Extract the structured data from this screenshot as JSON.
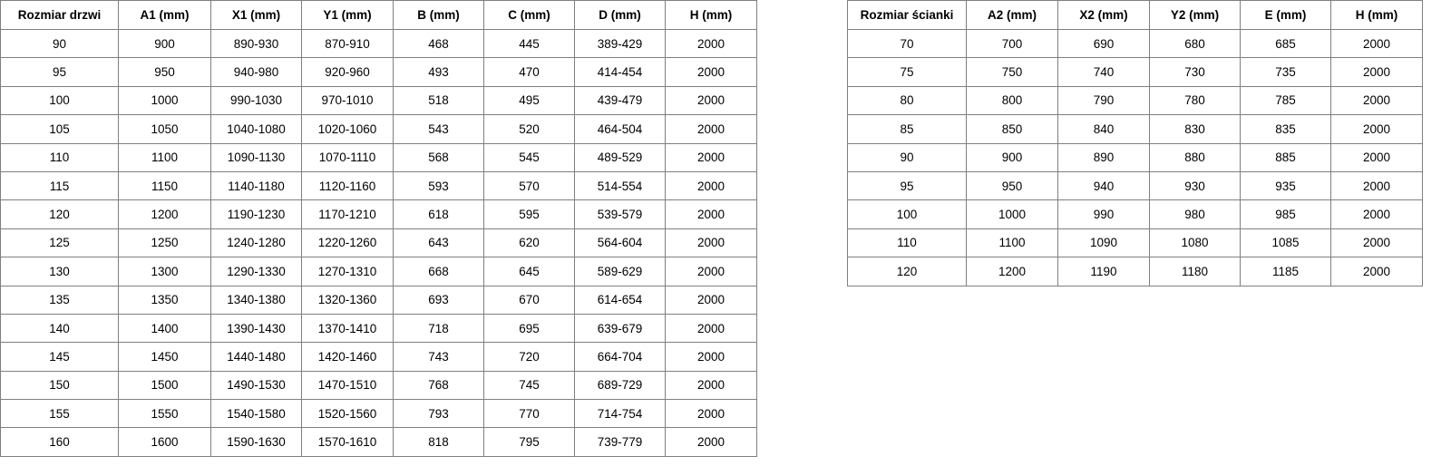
{
  "door_table": {
    "headers": [
      "Rozmiar drzwi",
      "A1 (mm)",
      "X1 (mm)",
      "Y1 (mm)",
      "B (mm)",
      "C (mm)",
      "D (mm)",
      "H (mm)"
    ],
    "rows": [
      [
        "90",
        "900",
        "890-930",
        "870-910",
        "468",
        "445",
        "389-429",
        "2000"
      ],
      [
        "95",
        "950",
        "940-980",
        "920-960",
        "493",
        "470",
        "414-454",
        "2000"
      ],
      [
        "100",
        "1000",
        "990-1030",
        "970-1010",
        "518",
        "495",
        "439-479",
        "2000"
      ],
      [
        "105",
        "1050",
        "1040-1080",
        "1020-1060",
        "543",
        "520",
        "464-504",
        "2000"
      ],
      [
        "110",
        "1100",
        "1090-1130",
        "1070-1110",
        "568",
        "545",
        "489-529",
        "2000"
      ],
      [
        "115",
        "1150",
        "1140-1180",
        "1120-1160",
        "593",
        "570",
        "514-554",
        "2000"
      ],
      [
        "120",
        "1200",
        "1190-1230",
        "1170-1210",
        "618",
        "595",
        "539-579",
        "2000"
      ],
      [
        "125",
        "1250",
        "1240-1280",
        "1220-1260",
        "643",
        "620",
        "564-604",
        "2000"
      ],
      [
        "130",
        "1300",
        "1290-1330",
        "1270-1310",
        "668",
        "645",
        "589-629",
        "2000"
      ],
      [
        "135",
        "1350",
        "1340-1380",
        "1320-1360",
        "693",
        "670",
        "614-654",
        "2000"
      ],
      [
        "140",
        "1400",
        "1390-1430",
        "1370-1410",
        "718",
        "695",
        "639-679",
        "2000"
      ],
      [
        "145",
        "1450",
        "1440-1480",
        "1420-1460",
        "743",
        "720",
        "664-704",
        "2000"
      ],
      [
        "150",
        "1500",
        "1490-1530",
        "1470-1510",
        "768",
        "745",
        "689-729",
        "2000"
      ],
      [
        "155",
        "1550",
        "1540-1580",
        "1520-1560",
        "793",
        "770",
        "714-754",
        "2000"
      ],
      [
        "160",
        "1600",
        "1590-1630",
        "1570-1610",
        "818",
        "795",
        "739-779",
        "2000"
      ]
    ]
  },
  "wall_table": {
    "headers": [
      "Rozmiar ścianki",
      "A2 (mm)",
      "X2 (mm)",
      "Y2 (mm)",
      "E (mm)",
      "H (mm)"
    ],
    "rows": [
      [
        "70",
        "700",
        "690",
        "680",
        "685",
        "2000"
      ],
      [
        "75",
        "750",
        "740",
        "730",
        "735",
        "2000"
      ],
      [
        "80",
        "800",
        "790",
        "780",
        "785",
        "2000"
      ],
      [
        "85",
        "850",
        "840",
        "830",
        "835",
        "2000"
      ],
      [
        "90",
        "900",
        "890",
        "880",
        "885",
        "2000"
      ],
      [
        "95",
        "950",
        "940",
        "930",
        "935",
        "2000"
      ],
      [
        "100",
        "1000",
        "990",
        "980",
        "985",
        "2000"
      ],
      [
        "110",
        "1100",
        "1090",
        "1080",
        "1085",
        "2000"
      ],
      [
        "120",
        "1200",
        "1190",
        "1180",
        "1185",
        "2000"
      ]
    ]
  }
}
